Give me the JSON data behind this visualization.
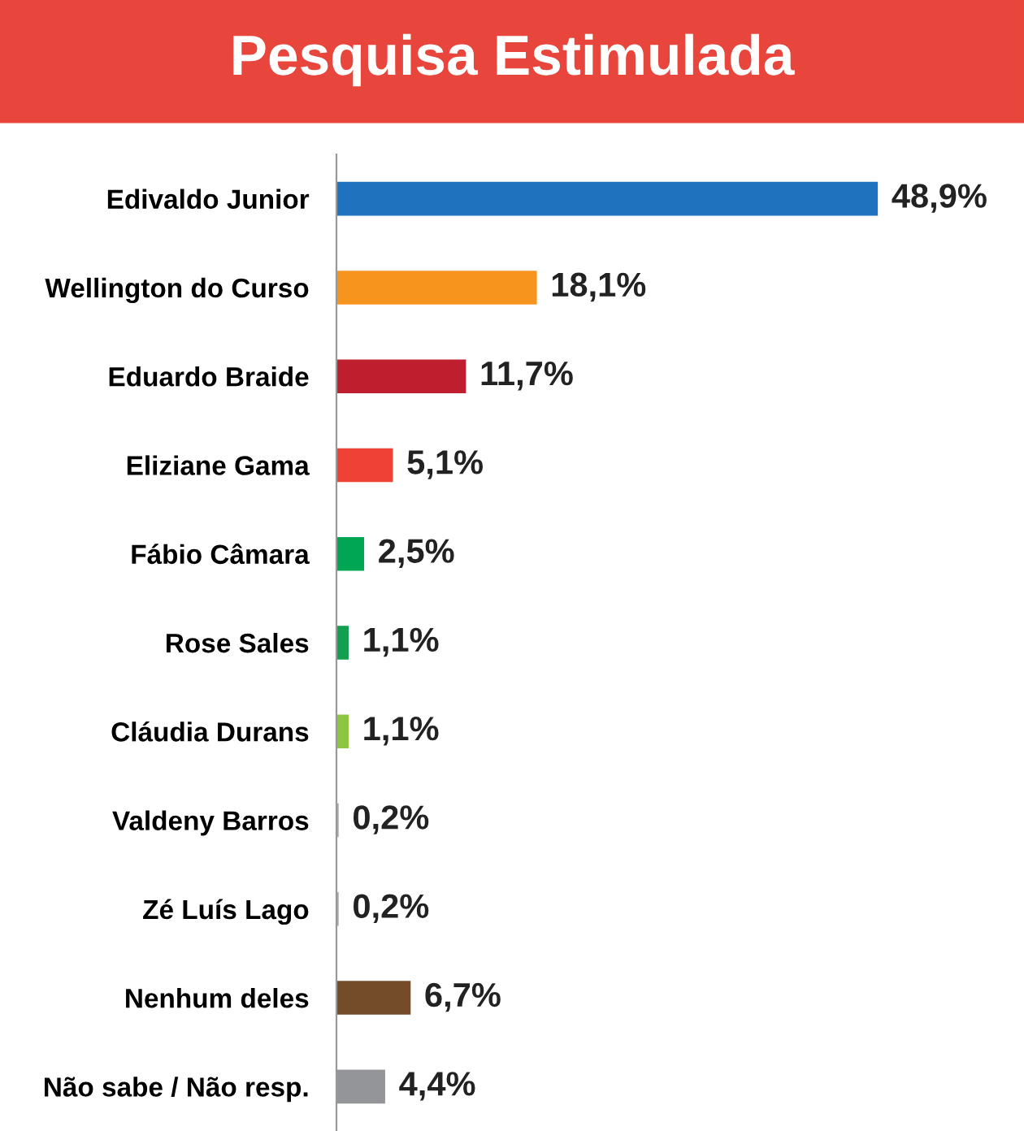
{
  "chart_data": {
    "type": "bar",
    "orientation": "horizontal",
    "title": "Pesquisa Estimulada",
    "categories": [
      "Edivaldo Junior",
      "Wellington do Curso",
      "Eduardo Braide",
      "Eliziane Gama",
      "Fábio Câmara",
      "Rose Sales",
      "Cláudia Durans",
      "Valdeny Barros",
      "Zé Luís Lago",
      "Nenhum deles",
      "Não sabe / Não resp."
    ],
    "values": [
      48.9,
      18.1,
      11.7,
      5.1,
      2.5,
      1.1,
      1.1,
      0.2,
      0.2,
      6.7,
      4.4
    ],
    "value_labels": [
      "48,9%",
      "18,1%",
      "11,7%",
      "5,1%",
      "2,5%",
      "1,1%",
      "1,1%",
      "0,2%",
      "0,2%",
      "6,7%",
      "4,4%"
    ],
    "colors": [
      "#1f72bd",
      "#f7941d",
      "#be1e2d",
      "#ef4136",
      "#00a651",
      "#12a050",
      "#8dc63f",
      "#a7a9ac",
      "#a7a9ac",
      "#754c29",
      "#939598"
    ],
    "tick_labels": "y",
    "grid": false,
    "legend": false
  }
}
